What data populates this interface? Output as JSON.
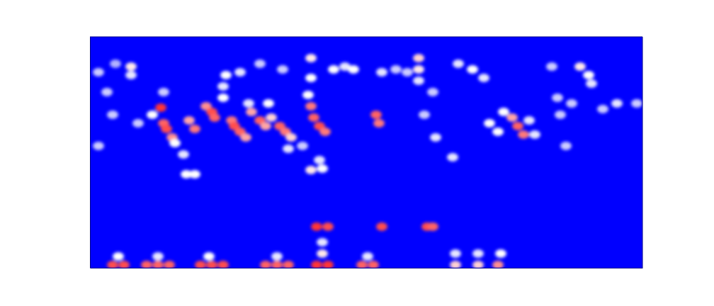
{
  "chart_data": {
    "type": "heatmap",
    "tick_labels": false,
    "xlim": [
      0,
      195
    ],
    "ylim": [
      0,
      81.5
    ],
    "xticks": [],
    "yticks": [],
    "value_range": [
      0,
      1
    ],
    "cells": [
      [
        8,
        1,
        0.9
      ],
      [
        12,
        1,
        0.9
      ],
      [
        20,
        1,
        0.85
      ],
      [
        24,
        1,
        0.85
      ],
      [
        28,
        1,
        0.85
      ],
      [
        39,
        1,
        0.9
      ],
      [
        43,
        1,
        0.9
      ],
      [
        47,
        1,
        0.9
      ],
      [
        62,
        1,
        0.85
      ],
      [
        66,
        1,
        0.85
      ],
      [
        70,
        1,
        0.85
      ],
      [
        80,
        1,
        0.95
      ],
      [
        84,
        1,
        0.95
      ],
      [
        96,
        1,
        0.85
      ],
      [
        100,
        1,
        0.85
      ],
      [
        129,
        1,
        0.6
      ],
      [
        137,
        1,
        0.6
      ],
      [
        144,
        1,
        0.75
      ],
      [
        10,
        4,
        0.5
      ],
      [
        24,
        4,
        0.45
      ],
      [
        42,
        4,
        0.5
      ],
      [
        66,
        4,
        0.45
      ],
      [
        82,
        5,
        0.55
      ],
      [
        82,
        9,
        0.45
      ],
      [
        98,
        4,
        0.45
      ],
      [
        137,
        5,
        0.45
      ],
      [
        145,
        5,
        0.5
      ],
      [
        129,
        5,
        0.45
      ],
      [
        80,
        14.5,
        0.95
      ],
      [
        84,
        14.5,
        0.9
      ],
      [
        103,
        14.5,
        0.9
      ],
      [
        119,
        14.5,
        0.9
      ],
      [
        121,
        14.5,
        0.85
      ],
      [
        25,
        56.5,
        0.95
      ],
      [
        26,
        51,
        0.85
      ],
      [
        27,
        49,
        0.9
      ],
      [
        29,
        46,
        0.75
      ],
      [
        35,
        52,
        0.7
      ],
      [
        37,
        49,
        0.8
      ],
      [
        41,
        57,
        0.75
      ],
      [
        43,
        55,
        0.9
      ],
      [
        44,
        53,
        0.85
      ],
      [
        50,
        52,
        0.8
      ],
      [
        51,
        50,
        0.9
      ],
      [
        53,
        48,
        0.85
      ],
      [
        55,
        46,
        0.7
      ],
      [
        57,
        55,
        0.7
      ],
      [
        60,
        52,
        0.85
      ],
      [
        62,
        50,
        0.7
      ],
      [
        64,
        53,
        0.6
      ],
      [
        67,
        50,
        0.85
      ],
      [
        69,
        48,
        0.8
      ],
      [
        71,
        46,
        0.6
      ],
      [
        78,
        57,
        0.8
      ],
      [
        79,
        53,
        0.85
      ],
      [
        81,
        50,
        0.9
      ],
      [
        83,
        48,
        0.8
      ],
      [
        101,
        54,
        0.85
      ],
      [
        102,
        51,
        0.8
      ],
      [
        149,
        53,
        0.7
      ],
      [
        151,
        50,
        0.85
      ],
      [
        153,
        47,
        0.8
      ],
      [
        22,
        54,
        0.5
      ],
      [
        30,
        44,
        0.5
      ],
      [
        33,
        40,
        0.45
      ],
      [
        37,
        33,
        0.5
      ],
      [
        34,
        33,
        0.5
      ],
      [
        47,
        60,
        0.5
      ],
      [
        47,
        64,
        0.45
      ],
      [
        48,
        68,
        0.5
      ],
      [
        53,
        69,
        0.45
      ],
      [
        56,
        58,
        0.45
      ],
      [
        63,
        58,
        0.5
      ],
      [
        70,
        42,
        0.45
      ],
      [
        75,
        43,
        0.4
      ],
      [
        78,
        34.5,
        0.55
      ],
      [
        82,
        35,
        0.5
      ],
      [
        81,
        38,
        0.45
      ],
      [
        77,
        61,
        0.5
      ],
      [
        78,
        67,
        0.5
      ],
      [
        78,
        74,
        0.55
      ],
      [
        86,
        70,
        0.5
      ],
      [
        90,
        71,
        0.45
      ],
      [
        93,
        70,
        0.5
      ],
      [
        103,
        69,
        0.45
      ],
      [
        116,
        74,
        0.6
      ],
      [
        116,
        70,
        0.55
      ],
      [
        116,
        66,
        0.45
      ],
      [
        112,
        69,
        0.4
      ],
      [
        122,
        46,
        0.45
      ],
      [
        128,
        39,
        0.45
      ],
      [
        130,
        72,
        0.45
      ],
      [
        135,
        70,
        0.5
      ],
      [
        139,
        67,
        0.45
      ],
      [
        141,
        51,
        0.5
      ],
      [
        144,
        48,
        0.5
      ],
      [
        146,
        55,
        0.5
      ],
      [
        155,
        52,
        0.45
      ],
      [
        157,
        47,
        0.45
      ],
      [
        14.5,
        71,
        0.55
      ],
      [
        14.5,
        68,
        0.45
      ],
      [
        173,
        71,
        0.55
      ],
      [
        176,
        68,
        0.5
      ],
      [
        177,
        65,
        0.45
      ],
      [
        168,
        43,
        0.4
      ],
      [
        165,
        60,
        0.4
      ],
      [
        170,
        58,
        0.4
      ],
      [
        3,
        69,
        0.4
      ],
      [
        6,
        62,
        0.4
      ],
      [
        8,
        54,
        0.4
      ],
      [
        3,
        43,
        0.4
      ],
      [
        17,
        51,
        0.4
      ],
      [
        26,
        62,
        0.4
      ],
      [
        121,
        62,
        0.4
      ],
      [
        118,
        54,
        0.4
      ],
      [
        163,
        71,
        0.4
      ],
      [
        186,
        58,
        0.45
      ],
      [
        193,
        58,
        0.4
      ],
      [
        181,
        56,
        0.4
      ],
      [
        166,
        54,
        0.4
      ],
      [
        9,
        72,
        0.35
      ],
      [
        60,
        72,
        0.4
      ],
      [
        68,
        70,
        0.4
      ],
      [
        108,
        70,
        0.4
      ]
    ]
  }
}
